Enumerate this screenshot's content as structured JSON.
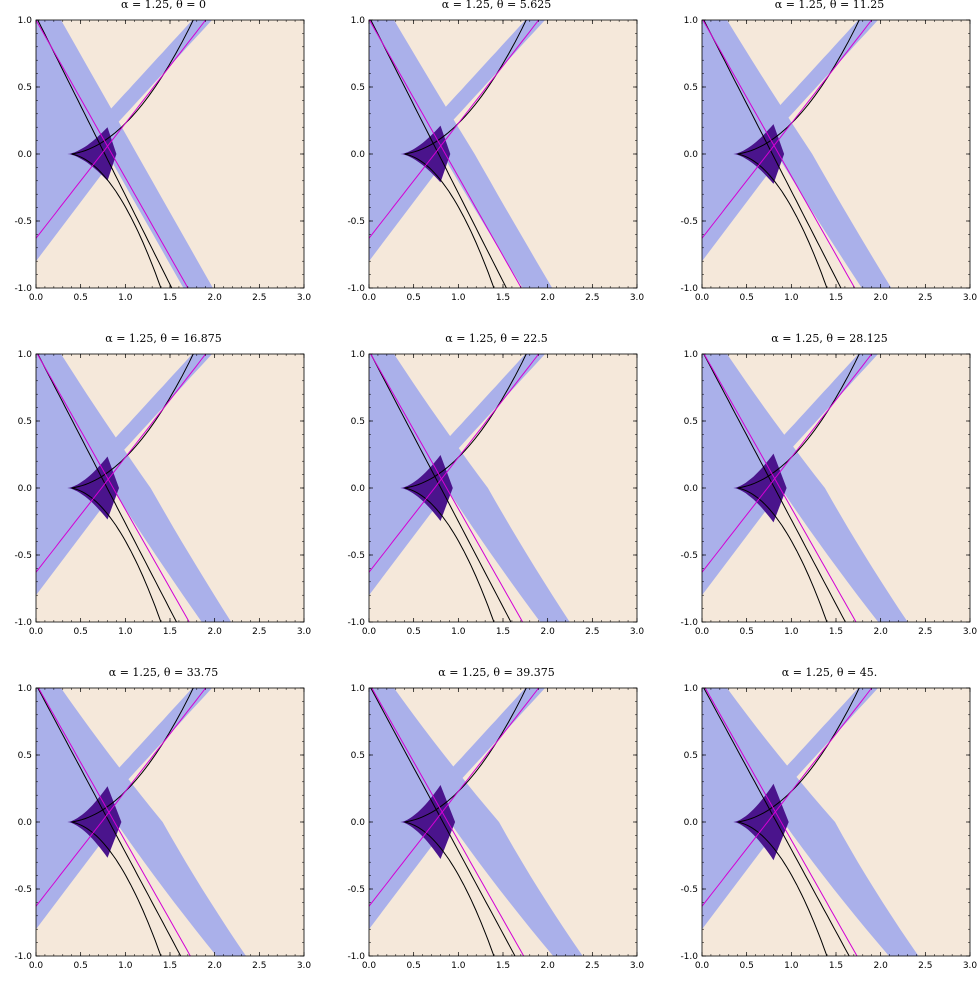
{
  "colors": {
    "background": "#f5e8da",
    "light_region": "#aab0ea",
    "dark_region": "#4a148c",
    "black_curve": "#000000",
    "magenta_curve": "#d400d4"
  },
  "chart_data": [
    {
      "type": "region",
      "title": "α = 1.25, θ = 0",
      "alpha": 1.25,
      "theta": 0,
      "xlim": [
        0,
        3
      ],
      "ylim": [
        -1,
        1
      ],
      "xticks": [
        "0.0",
        "0.5",
        "1.0",
        "1.5",
        "2.0",
        "2.5",
        "3.0"
      ],
      "yticks": [
        "-1.0",
        "-0.5",
        "0.0",
        "0.5",
        "1.0"
      ]
    },
    {
      "type": "region",
      "title": "α = 1.25, θ = 5.625",
      "alpha": 1.25,
      "theta": 5.625,
      "xlim": [
        0,
        3
      ],
      "ylim": [
        -1,
        1
      ],
      "xticks": [
        "0.0",
        "0.5",
        "1.0",
        "1.5",
        "2.0",
        "2.5",
        "3.0"
      ],
      "yticks": [
        "-1.0",
        "-0.5",
        "0.0",
        "0.5",
        "1.0"
      ]
    },
    {
      "type": "region",
      "title": "α = 1.25, θ = 11.25",
      "alpha": 1.25,
      "theta": 11.25,
      "xlim": [
        0,
        3
      ],
      "ylim": [
        -1,
        1
      ],
      "xticks": [
        "0.0",
        "0.5",
        "1.0",
        "1.5",
        "2.0",
        "2.5",
        "3.0"
      ],
      "yticks": [
        "-1.0",
        "-0.5",
        "0.0",
        "0.5",
        "1.0"
      ]
    },
    {
      "type": "region",
      "title": "α = 1.25, θ = 16.875",
      "alpha": 1.25,
      "theta": 16.875,
      "xlim": [
        0,
        3
      ],
      "ylim": [
        -1,
        1
      ],
      "xticks": [
        "0.0",
        "0.5",
        "1.0",
        "1.5",
        "2.0",
        "2.5",
        "3.0"
      ],
      "yticks": [
        "-1.0",
        "-0.5",
        "0.0",
        "0.5",
        "1.0"
      ]
    },
    {
      "type": "region",
      "title": "α = 1.25, θ = 22.5",
      "alpha": 1.25,
      "theta": 22.5,
      "xlim": [
        0,
        3
      ],
      "ylim": [
        -1,
        1
      ],
      "xticks": [
        "0.0",
        "0.5",
        "1.0",
        "1.5",
        "2.0",
        "2.5",
        "3.0"
      ],
      "yticks": [
        "-1.0",
        "-0.5",
        "0.0",
        "0.5",
        "1.0"
      ]
    },
    {
      "type": "region",
      "title": "α = 1.25, θ = 28.125",
      "alpha": 1.25,
      "theta": 28.125,
      "xlim": [
        0,
        3
      ],
      "ylim": [
        -1,
        1
      ],
      "xticks": [
        "0.0",
        "0.5",
        "1.0",
        "1.5",
        "2.0",
        "2.5",
        "3.0"
      ],
      "yticks": [
        "-1.0",
        "-0.5",
        "0.0",
        "0.5",
        "1.0"
      ]
    },
    {
      "type": "region",
      "title": "α = 1.25, θ = 33.75",
      "alpha": 1.25,
      "theta": 33.75,
      "xlim": [
        0,
        3
      ],
      "ylim": [
        -1,
        1
      ],
      "xticks": [
        "0.0",
        "0.5",
        "1.0",
        "1.5",
        "2.0",
        "2.5",
        "3.0"
      ],
      "yticks": [
        "-1.0",
        "-0.5",
        "0.0",
        "0.5",
        "1.0"
      ]
    },
    {
      "type": "region",
      "title": "α = 1.25, θ = 39.375",
      "alpha": 1.25,
      "theta": 39.375,
      "xlim": [
        0,
        3
      ],
      "ylim": [
        -1,
        1
      ],
      "xticks": [
        "0.0",
        "0.5",
        "1.0",
        "1.5",
        "2.0",
        "2.5",
        "3.0"
      ],
      "yticks": [
        "-1.0",
        "-0.5",
        "0.0",
        "0.5",
        "1.0"
      ]
    },
    {
      "type": "region",
      "title": "α = 1.25, θ = 45.",
      "alpha": 1.25,
      "theta": 45,
      "xlim": [
        0,
        3
      ],
      "ylim": [
        -1,
        1
      ],
      "xticks": [
        "0.0",
        "0.5",
        "1.0",
        "1.5",
        "2.0",
        "2.5",
        "3.0"
      ],
      "yticks": [
        "-1.0",
        "-0.5",
        "0.0",
        "0.5",
        "1.0"
      ]
    }
  ]
}
